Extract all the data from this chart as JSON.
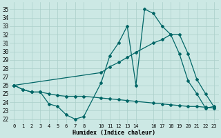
{
  "bg_color": "#cce8e4",
  "grid_color": "#aacfca",
  "line_color": "#006666",
  "markersize": 2.0,
  "linewidth": 0.9,
  "series1_x": [
    0,
    1,
    2,
    3,
    4,
    5,
    6,
    7,
    8,
    10,
    11,
    12,
    13,
    14,
    15,
    16,
    17,
    18,
    19,
    20,
    21,
    22,
    23
  ],
  "series1_y": [
    26,
    25.5,
    25.2,
    25.2,
    23.8,
    23.5,
    22.5,
    22.0,
    22.3,
    26.3,
    29.5,
    31.0,
    33.0,
    26.0,
    35.0,
    34.5,
    33.0,
    32.0,
    29.7,
    26.5,
    25.0,
    23.3,
    23.5
  ],
  "series2_x": [
    0,
    10,
    11,
    12,
    13,
    14,
    16,
    17,
    18,
    19,
    20,
    21,
    22,
    23
  ],
  "series2_y": [
    26.0,
    27.5,
    28.2,
    28.7,
    29.3,
    29.9,
    31.0,
    31.4,
    32.0,
    32.0,
    29.7,
    26.7,
    25.0,
    23.4
  ],
  "series3_x": [
    0,
    1,
    2,
    3,
    4,
    5,
    6,
    7,
    8,
    10,
    11,
    12,
    13,
    14,
    16,
    17,
    18,
    19,
    20,
    21,
    22,
    23
  ],
  "series3_y": [
    26.0,
    25.5,
    25.2,
    25.2,
    25.0,
    24.8,
    24.7,
    24.7,
    24.7,
    24.5,
    24.4,
    24.3,
    24.2,
    24.1,
    23.9,
    23.8,
    23.7,
    23.6,
    23.5,
    23.5,
    23.4,
    23.3
  ],
  "xlim": [
    -0.5,
    23.5
  ],
  "ylim": [
    21.5,
    35.8
  ],
  "yticks": [
    22,
    23,
    24,
    25,
    26,
    27,
    28,
    29,
    30,
    31,
    32,
    33,
    34,
    35
  ],
  "xticks": [
    0,
    1,
    2,
    3,
    4,
    5,
    6,
    7,
    8,
    10,
    11,
    12,
    13,
    14,
    16,
    17,
    18,
    19,
    20,
    21,
    22,
    23
  ],
  "xtick_labels": [
    "0",
    "1",
    "2",
    "3",
    "4",
    "5",
    "6",
    "7",
    "8",
    "1011",
    "12",
    "13",
    "14",
    "",
    "16",
    "17",
    "18",
    "19",
    "20",
    "21",
    "22",
    "23"
  ],
  "xlabel": "Humidex (Indice chaleur)"
}
